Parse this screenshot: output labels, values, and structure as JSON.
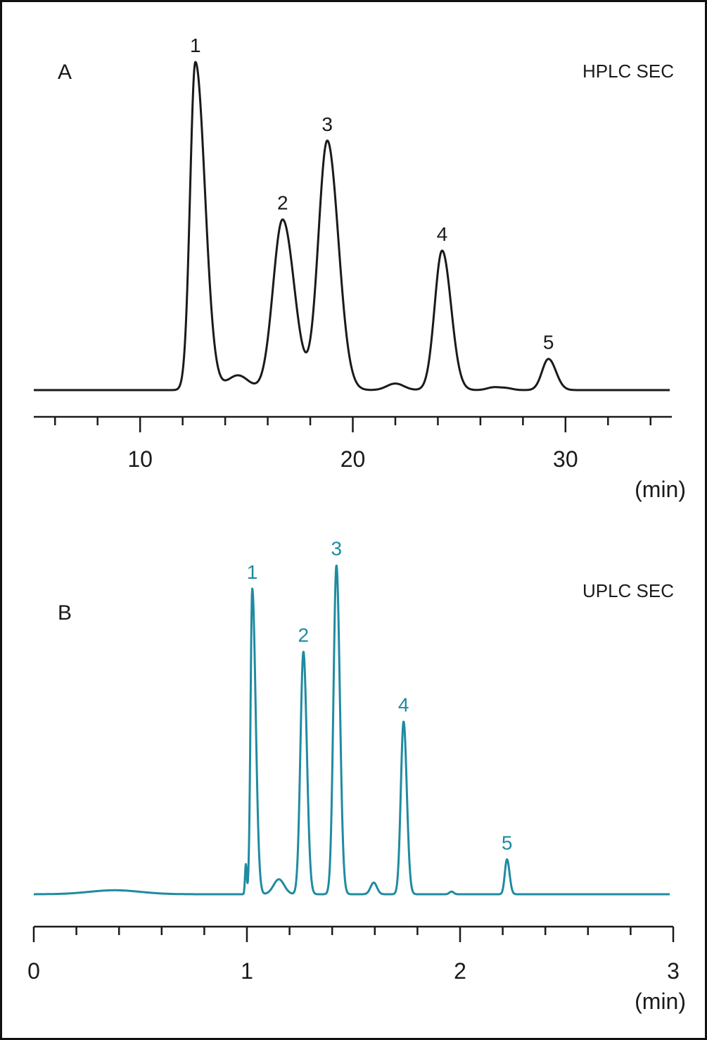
{
  "chart_data": [
    {
      "type": "line",
      "panel_label": "A",
      "title": "HPLC SEC",
      "xlabel": "(min)",
      "xlim": [
        5,
        35
      ],
      "x_ticks": [
        10,
        20,
        30
      ],
      "x_minor_step": 2,
      "ylim": [
        0,
        1.0
      ],
      "color": "#1a1a1a",
      "baseline": 0.0,
      "peaks": [
        {
          "label": "1",
          "rt": 12.6,
          "height": 1.0,
          "w_left": 0.25,
          "w_right": 0.45
        },
        {
          "label": "2",
          "rt": 16.7,
          "height": 0.52,
          "w_left": 0.45,
          "w_right": 0.55
        },
        {
          "label": "3",
          "rt": 18.8,
          "height": 0.76,
          "w_left": 0.42,
          "w_right": 0.52
        },
        {
          "label": "4",
          "rt": 24.2,
          "height": 0.425,
          "w_left": 0.35,
          "w_right": 0.42
        },
        {
          "label": "5",
          "rt": 29.2,
          "height": 0.095,
          "w_left": 0.3,
          "w_right": 0.35
        }
      ],
      "minor_peaks": [
        {
          "rt": 14.6,
          "height": 0.045,
          "width": 0.5
        },
        {
          "rt": 22.0,
          "height": 0.02,
          "width": 0.4
        },
        {
          "rt": 26.6,
          "height": 0.008,
          "width": 0.3
        },
        {
          "rt": 27.2,
          "height": 0.006,
          "width": 0.3
        }
      ]
    },
    {
      "type": "line",
      "panel_label": "B",
      "title": "UPLC SEC",
      "xlabel": "(min)",
      "xlim": [
        0,
        3
      ],
      "x_ticks": [
        0,
        1,
        2,
        3
      ],
      "x_minor_step": 0.2,
      "ylim": [
        0,
        1.0
      ],
      "color": "#1f8ba0",
      "baseline": 0.0,
      "peaks": [
        {
          "label": "1",
          "rt": 1.025,
          "height": 0.92,
          "w_left": 0.008,
          "w_right": 0.016
        },
        {
          "label": "2",
          "rt": 1.265,
          "height": 0.73,
          "w_left": 0.014,
          "w_right": 0.016
        },
        {
          "label": "3",
          "rt": 1.42,
          "height": 0.99,
          "w_left": 0.014,
          "w_right": 0.016
        },
        {
          "label": "4",
          "rt": 1.735,
          "height": 0.52,
          "w_left": 0.013,
          "w_right": 0.015
        },
        {
          "label": "5",
          "rt": 2.22,
          "height": 0.105,
          "w_left": 0.01,
          "w_right": 0.012
        }
      ],
      "minor_peaks": [
        {
          "rt": 0.38,
          "height": 0.012,
          "width": 0.12
        },
        {
          "rt": 0.995,
          "height": 0.09,
          "width": 0.004
        },
        {
          "rt": 1.15,
          "height": 0.045,
          "width": 0.025
        },
        {
          "rt": 1.595,
          "height": 0.035,
          "width": 0.015
        },
        {
          "rt": 1.96,
          "height": 0.008,
          "width": 0.01
        }
      ]
    }
  ]
}
